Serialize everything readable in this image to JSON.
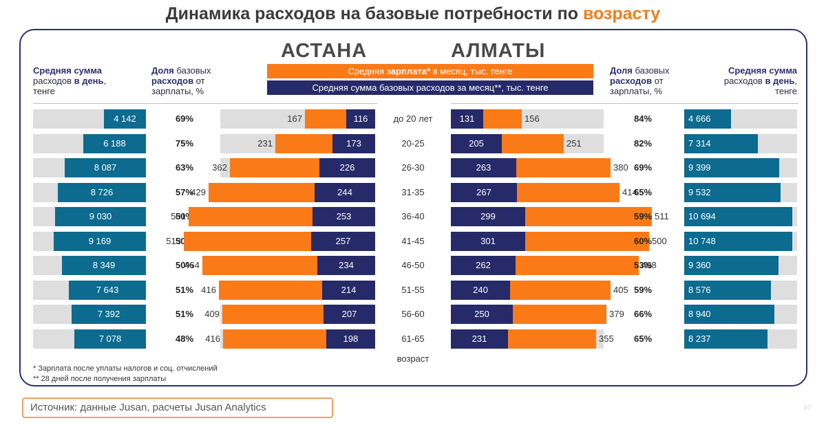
{
  "title": {
    "main": "Динамика расходов на базовые потребности по ",
    "accent": "возрасту"
  },
  "cities": {
    "left": "АСТАНА",
    "right": "АЛМАТЫ"
  },
  "legend": {
    "salary": {
      "pre": "Средняя ",
      "bold": "зарплата*",
      "post": " в месяц, тыс. тенге"
    },
    "expenses": "Средняя сумма базовых расходов за месяц**, тыс. тенге"
  },
  "headers": {
    "left_daily": {
      "l1_bold": "Средняя сумма",
      "l2_pre": "расходов ",
      "l2_bold": "в день",
      "l2_post": ",",
      "l3": "тенге"
    },
    "left_share": {
      "l1_bold": "Доля",
      "l1_post": " базовых",
      "l2_bold": "расходов",
      "l2_post": " от",
      "l3": "зарплаты, %"
    },
    "right_share": {
      "l1_bold": "Доля",
      "l1_post": " базовых",
      "l2_bold": "расходов",
      "l2_post": " от",
      "l3": "зарплаты, %"
    },
    "right_daily": {
      "l1_bold": "Средняя сумма",
      "l2_pre": "расходов ",
      "l2_bold": "в день",
      "l2_post": ",",
      "l3": "тенге"
    }
  },
  "chart_data": {
    "type": "bar",
    "title": "Динамика расходов на базовые потребности по возрасту",
    "xlabel": "возраст",
    "categories": [
      "до 20 лет",
      "20-25",
      "26-30",
      "31-35",
      "36-40",
      "41-45",
      "46-50",
      "51-55",
      "56-60",
      "61-65"
    ],
    "astana": {
      "daily_spend": {
        "values": [
          4142,
          6188,
          8087,
          8726,
          9030,
          9169,
          8349,
          7643,
          7392,
          7078
        ],
        "labels": [
          "4 142",
          "6 188",
          "8 087",
          "8 726",
          "9 030",
          "9 169",
          "8 349",
          "7 643",
          "7 392",
          "7 078"
        ]
      },
      "share_pct": [
        "69%",
        "75%",
        "63%",
        "57%",
        "50%",
        "50%",
        "50%",
        "51%",
        "51%",
        "48%"
      ],
      "salary": [
        167,
        231,
        362,
        429,
        501,
        513,
        464,
        416,
        409,
        416
      ],
      "expenses": [
        116,
        173,
        226,
        244,
        253,
        257,
        234,
        214,
        207,
        198
      ]
    },
    "almaty": {
      "daily_spend": {
        "values": [
          4666,
          7314,
          9399,
          9532,
          10694,
          10748,
          9360,
          8576,
          8940,
          8237
        ],
        "labels": [
          "4 666",
          "7 314",
          "9 399",
          "9 532",
          "10 694",
          "10 748",
          "9 360",
          "8 576",
          "8 940",
          "8 237"
        ]
      },
      "share_pct": [
        "84%",
        "82%",
        "69%",
        "65%",
        "59%",
        "60%",
        "53%",
        "59%",
        "66%",
        "65%"
      ],
      "salary": [
        156,
        251,
        380,
        414,
        511,
        500,
        498,
        405,
        379,
        355
      ],
      "expenses": [
        131,
        205,
        263,
        267,
        299,
        301,
        262,
        240,
        250,
        231
      ]
    },
    "colors": {
      "salary": "#fb7a18",
      "expenses": "#262a68",
      "daily": "#0c6b8f",
      "track": "#dedede"
    }
  },
  "footnotes": [
    "* Зарплата после уплаты налогов и соц. отчислений",
    "** 28 дней после получения зарплаты"
  ],
  "source": "Источник: данные Jusan, расчеты Jusan Analytics",
  "page_number": "07"
}
